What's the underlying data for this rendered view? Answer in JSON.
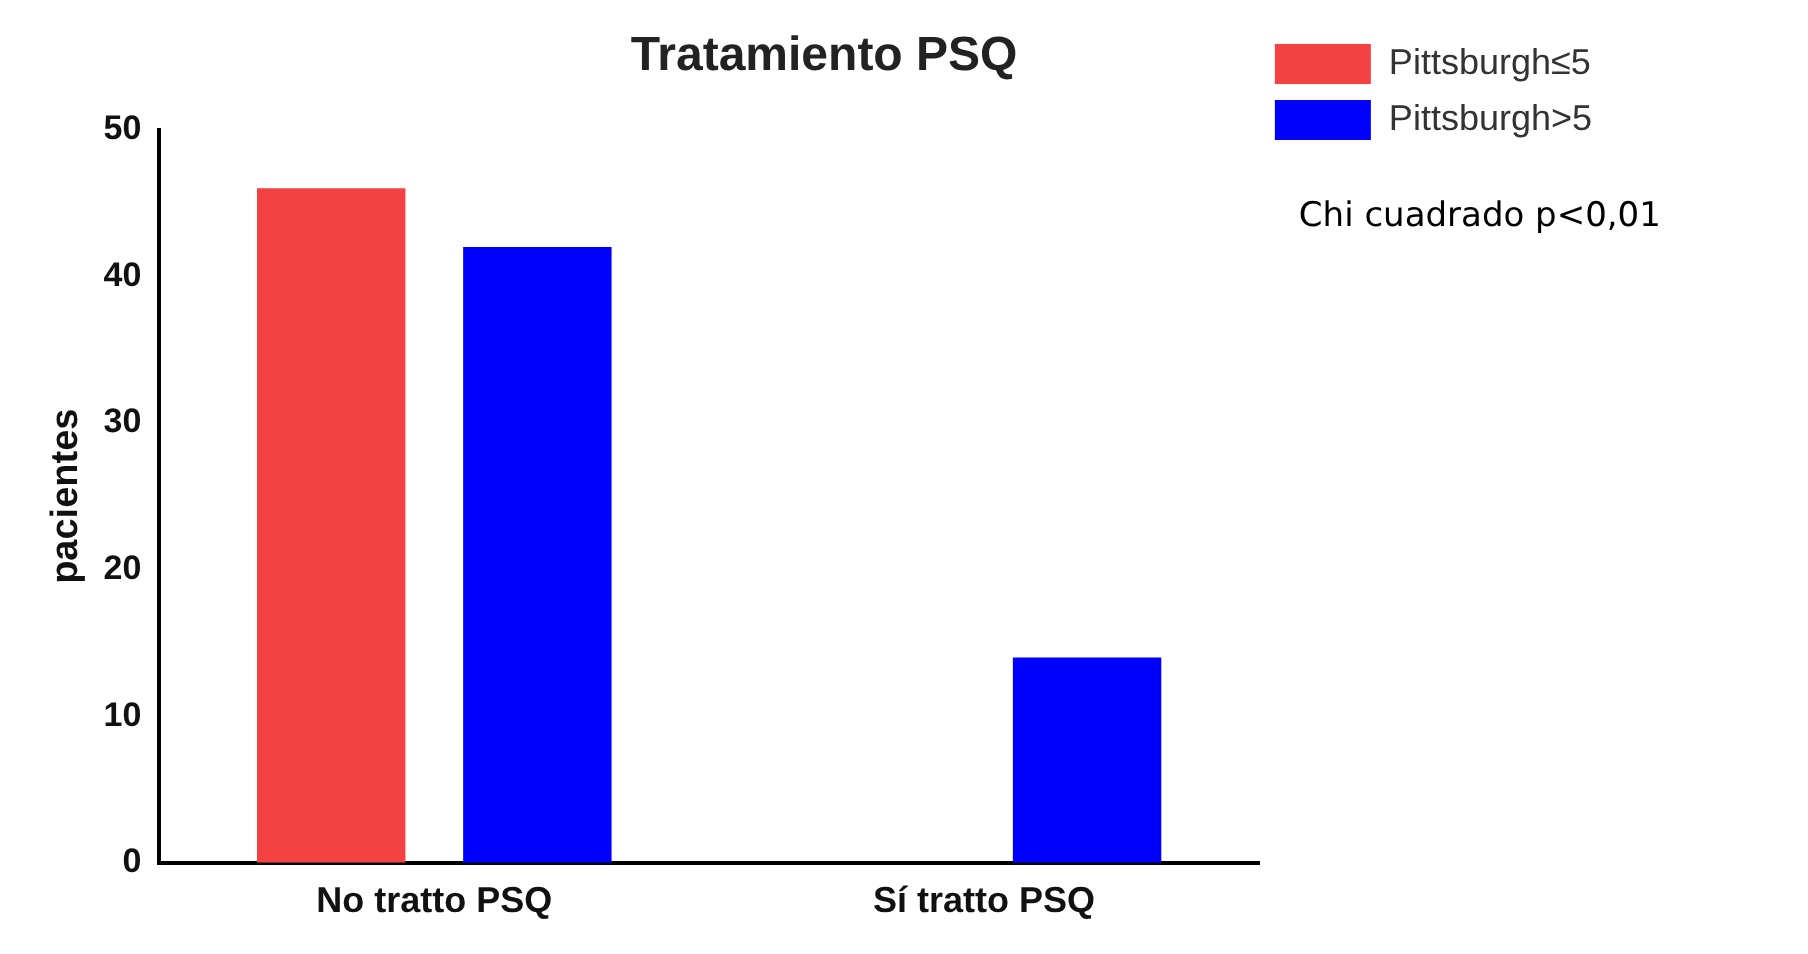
{
  "chart_data": {
    "type": "bar",
    "title": "Tratamiento PSQ",
    "ylabel": "pacientes",
    "categories": [
      "No tratto PSQ",
      "Sí tratto PSQ"
    ],
    "series": [
      {
        "name": "Pittsburgh≤5",
        "color": "#f44141",
        "values": [
          46,
          0
        ]
      },
      {
        "name": "Pittsburgh>5",
        "color": "#0000ff",
        "values": [
          42,
          14
        ]
      }
    ],
    "ylim": [
      0,
      50
    ],
    "yticks": [
      0,
      10,
      20,
      30,
      40,
      50
    ],
    "grid": false,
    "legend": "top right",
    "annotations": [
      "Chi cuadrado p<0,01"
    ]
  }
}
